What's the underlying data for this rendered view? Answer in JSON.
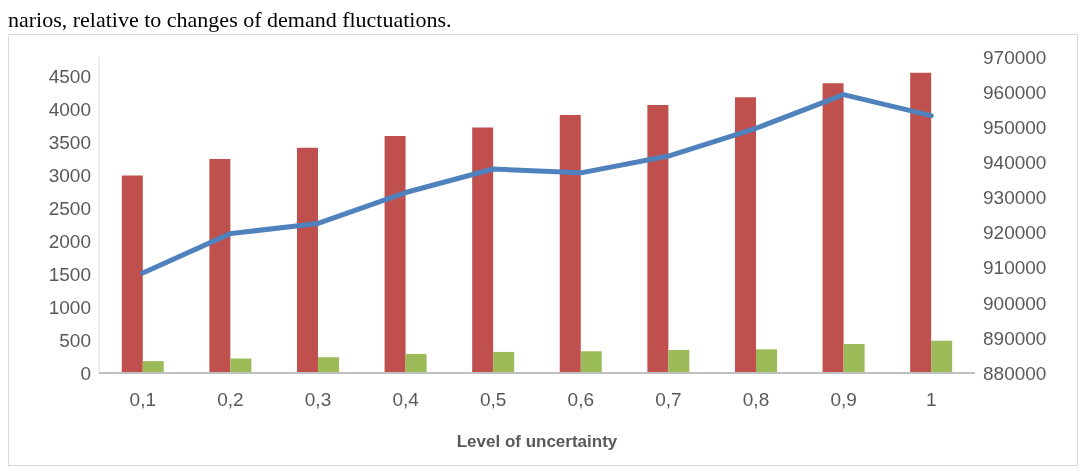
{
  "chart_data": {
    "type": "bar",
    "annotations": [
      "narios, relative to changes of demand fluctuations."
    ],
    "xlabel": "Level of uncertainty",
    "categories": [
      "0,1",
      "0,2",
      "0,3",
      "0,4",
      "0,5",
      "0,6",
      "0,7",
      "0,8",
      "0,9",
      "1"
    ],
    "series": [
      {
        "color": "#c0504d",
        "values": [
          3000,
          3250,
          3420,
          3600,
          3730,
          3920,
          4070,
          4190,
          4400,
          4560
        ]
      },
      {
        "color": "#9bbb59",
        "values": [
          180,
          220,
          240,
          290,
          320,
          330,
          350,
          360,
          440,
          490
        ]
      },
      {
        "type": "line",
        "axis": "y2",
        "color": "#4f81bd",
        "values": [
          908500,
          919700,
          922600,
          931400,
          938100,
          937000,
          941800,
          949700,
          959300,
          953300
        ]
      }
    ],
    "ylim": [
      0,
      4800
    ],
    "yticks": [
      0,
      500,
      1000,
      1500,
      2000,
      2500,
      3000,
      3500,
      4000,
      4500
    ],
    "y2lim": [
      880000,
      970000
    ],
    "y2ticks": [
      880000,
      890000,
      900000,
      910000,
      920000,
      930000,
      940000,
      950000,
      960000,
      970000
    ],
    "grid": false,
    "legend": false,
    "marker": "none",
    "line_style": "solid"
  }
}
